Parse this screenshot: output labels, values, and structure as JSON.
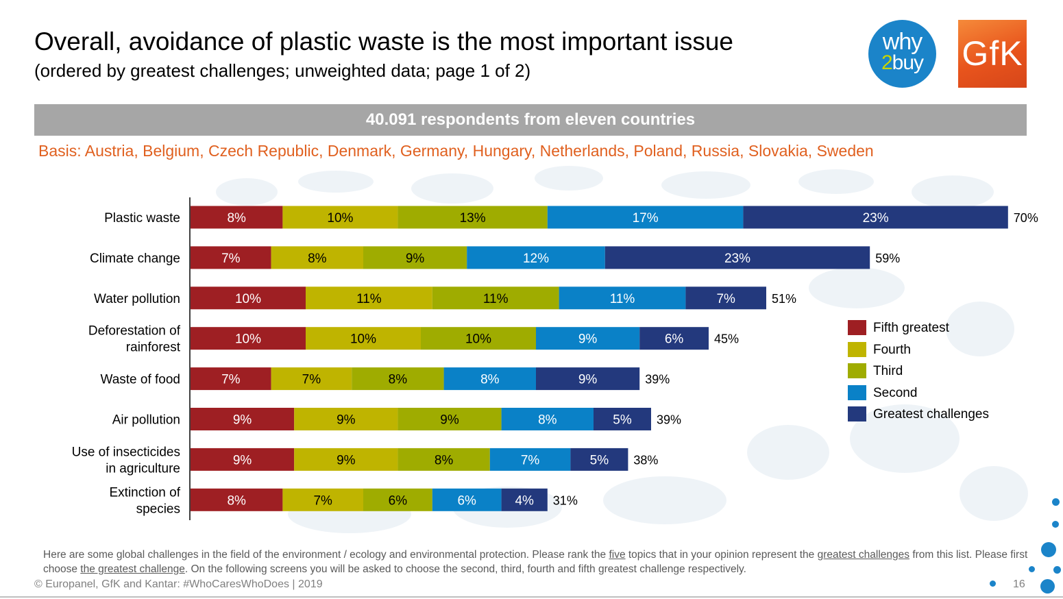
{
  "header": {
    "title": "Overall, avoidance of plastic waste is the most important issue",
    "subtitle": "(ordered by greatest challenges; unweighted data; page 1 of 2)"
  },
  "logos": {
    "why2buy": {
      "line1": "why",
      "two": "2",
      "line2": "buy"
    },
    "gfk": "GfK"
  },
  "banner": "40.091 respondents from eleven countries",
  "basis": "Basis: Austria, Belgium, Czech Republic, Denmark, Germany, Hungary, Netherlands, Poland, Russia, Slovakia, Sweden",
  "colors": {
    "fifth": "#9e1f23",
    "fourth": "#bfb400",
    "third": "#9fac00",
    "second": "#0a81c7",
    "greatest": "#23397d",
    "basis_text": "#e0601f",
    "banner_bg": "#a6a6a6"
  },
  "chart_data": {
    "type": "bar",
    "orientation": "horizontal",
    "stacked": true,
    "categories": [
      "Plastic waste",
      "Climate change",
      "Water pollution",
      "Deforestation of rainforest",
      "Waste of food",
      "Air pollution",
      "Use of insecticides in agriculture",
      "Extinction of species"
    ],
    "category_lines": [
      [
        "Plastic waste"
      ],
      [
        "Climate change"
      ],
      [
        "Water pollution"
      ],
      [
        "Deforestation of",
        "rainforest"
      ],
      [
        "Waste of food"
      ],
      [
        "Air pollution"
      ],
      [
        "Use of insecticides",
        "in agriculture"
      ],
      [
        "Extinction of",
        "species"
      ]
    ],
    "series": [
      {
        "name": "Fifth greatest",
        "key": "fifth",
        "values": [
          8,
          7,
          10,
          10,
          7,
          9,
          9,
          8
        ]
      },
      {
        "name": "Fourth",
        "key": "fourth",
        "values": [
          10,
          8,
          11,
          10,
          7,
          9,
          9,
          7
        ]
      },
      {
        "name": "Third",
        "key": "third",
        "values": [
          13,
          9,
          11,
          10,
          8,
          9,
          8,
          6
        ]
      },
      {
        "name": "Second",
        "key": "second",
        "values": [
          17,
          12,
          11,
          9,
          8,
          8,
          7,
          6
        ]
      },
      {
        "name": "Greatest challenges",
        "key": "greatest",
        "values": [
          23,
          23,
          7,
          6,
          9,
          5,
          5,
          4
        ]
      }
    ],
    "totals": [
      70,
      59,
      51,
      45,
      39,
      39,
      38,
      31
    ],
    "value_suffix": "%",
    "xlim": [
      0,
      70
    ],
    "grid": false,
    "legend": "right"
  },
  "question": {
    "p1": "Here are some global challenges in the field of the environment / ecology and environmental protection. Please rank the ",
    "u1": "five",
    "p2": " topics that in your opinion represent the ",
    "u2": "greatest challenges",
    "p3": " from this list. Please first choose ",
    "u3": "the greatest challenge",
    "p4": ". On the following screens you will be asked to choose the second, third, fourth and fifth greatest challenge respectively."
  },
  "footer": "© Europanel, GfK and Kantar: #WhoCaresWhoDoes | 2019",
  "page_number": "16"
}
